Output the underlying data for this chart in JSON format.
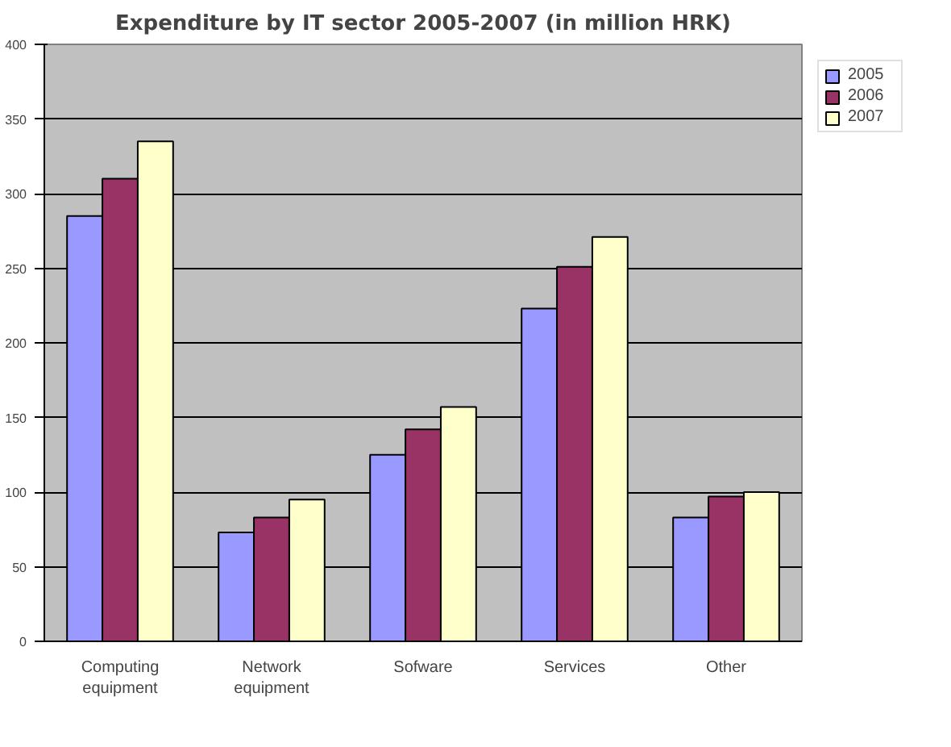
{
  "chart_data": {
    "type": "bar",
    "title": "Expenditure by IT sector 2005-2007 (in million HRK)",
    "categories": [
      "Computing equipment",
      "Network equipment",
      "Sofware",
      "Services",
      "Other"
    ],
    "series": [
      {
        "name": "2005",
        "color": "#9999ff",
        "values": [
          285,
          73,
          125,
          223,
          83
        ]
      },
      {
        "name": "2006",
        "color": "#993366",
        "values": [
          310,
          83,
          142,
          251,
          97
        ]
      },
      {
        "name": "2007",
        "color": "#ffffcc",
        "values": [
          335,
          95,
          157,
          271,
          100
        ]
      }
    ],
    "ylim": [
      0,
      400
    ],
    "yticks": [
      0,
      50,
      100,
      150,
      200,
      250,
      300,
      350,
      400
    ],
    "grid": "y",
    "legend": "right"
  }
}
